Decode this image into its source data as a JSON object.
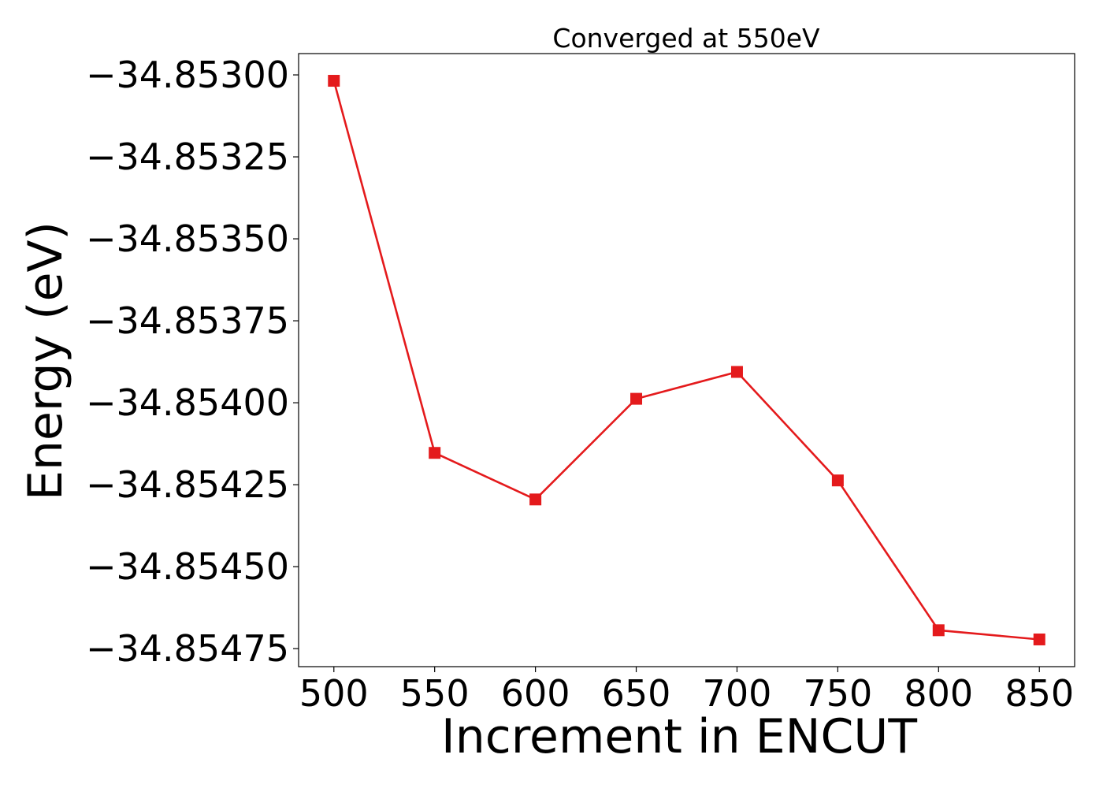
{
  "chart_data": {
    "type": "line",
    "title": "Converged at 550eV",
    "xlabel": "Increment in ENCUT",
    "ylabel": "Energy (eV)",
    "x": [
      500,
      550,
      600,
      650,
      700,
      750,
      800,
      850
    ],
    "series": [
      {
        "values": [
          -34.853018,
          -34.854153,
          -34.854295,
          -34.853988,
          -34.853906,
          -34.854237,
          -34.854694,
          -34.854722
        ],
        "color": "#e41a1c",
        "marker": "square"
      }
    ],
    "xticks": [
      500,
      550,
      600,
      650,
      700,
      750,
      800,
      850
    ],
    "xtick_labels": [
      "500",
      "550",
      "600",
      "650",
      "700",
      "750",
      "800",
      "850"
    ],
    "yticks": [
      -34.853,
      -34.85325,
      -34.8535,
      -34.85375,
      -34.854,
      -34.85425,
      -34.8545,
      -34.85475
    ],
    "ytick_labels": [
      "−34.85300",
      "−34.85325",
      "−34.85350",
      "−34.85375",
      "−34.85400",
      "−34.85425",
      "−34.85450",
      "−34.85475"
    ],
    "xlim": [
      482.5,
      867.5
    ],
    "ylim": [
      -34.854805,
      -34.852935
    ],
    "grid": false,
    "legend": false
  }
}
